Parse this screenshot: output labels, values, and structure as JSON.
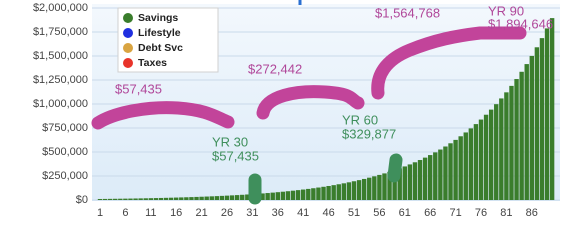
{
  "chart_data": {
    "type": "bar",
    "categories": [
      1,
      null,
      null,
      null,
      null,
      6,
      null,
      null,
      null,
      null,
      11,
      null,
      null,
      null,
      null,
      16,
      null,
      null,
      null,
      null,
      21,
      null,
      null,
      null,
      null,
      26,
      null,
      null,
      null,
      null,
      31,
      null,
      null,
      null,
      null,
      36,
      null,
      null,
      null,
      null,
      41,
      null,
      null,
      null,
      null,
      46,
      null,
      null,
      null,
      null,
      51,
      null,
      null,
      null,
      null,
      56,
      null,
      null,
      null,
      null,
      61,
      null,
      null,
      null,
      null,
      66,
      null,
      null,
      null,
      null,
      71,
      null,
      null,
      null,
      null,
      76,
      null,
      null,
      null,
      null,
      81,
      null,
      null,
      null,
      null,
      86,
      null,
      null,
      null,
      null
    ],
    "series": [
      {
        "name": "Savings",
        "color": "#3a7d2c",
        "values": [
          10600,
          11236,
          11910,
          12625,
          13382,
          14185,
          15036,
          15938,
          16895,
          17908,
          18983,
          20122,
          21329,
          22609,
          23966,
          25404,
          26928,
          28543,
          30256,
          32071,
          33996,
          36035,
          38197,
          40489,
          42919,
          45494,
          48223,
          51117,
          54184,
          57435,
          60881,
          64534,
          68406,
          72510,
          76861,
          81473,
          86361,
          91543,
          97036,
          102857,
          109028,
          115571,
          122504,
          129855,
          137646,
          145905,
          154659,
          163939,
          173775,
          184202,
          195254,
          206969,
          219387,
          232550,
          246503,
          261293,
          276971,
          293589,
          311204,
          329877,
          349670,
          370650,
          392883,
          416470,
          441441,
          467931,
          496003,
          525758,
          557327,
          590744,
          626196,
          663779,
          703605,
          745819,
          790583,
          838019,
          888293,
          941568,
          998076,
          1057958,
          1121450,
          1188712,
          1260036,
          1335639,
          1415789,
          1500743,
          1590766,
          1686231,
          1787405,
          1894646
        ]
      },
      {
        "name": "Lifestyle",
        "color": "#1f2fe0",
        "values": [
          null,
          null,
          null,
          null,
          null,
          null,
          null,
          null,
          null,
          null,
          null,
          null,
          null,
          null,
          null,
          null,
          null,
          null,
          null,
          null,
          null,
          null,
          null,
          null,
          null,
          null,
          null,
          null,
          null,
          null,
          null,
          null,
          null,
          null,
          null,
          null,
          null,
          null,
          null,
          null,
          null,
          null,
          null,
          null,
          null,
          null,
          null,
          null,
          null,
          null,
          null,
          null,
          null,
          null,
          null,
          null,
          null,
          null,
          null,
          null,
          null,
          null,
          null,
          null,
          null,
          null,
          null,
          null,
          null,
          null,
          null,
          null,
          null,
          null,
          null,
          null,
          null,
          null,
          null,
          null,
          null,
          null,
          null,
          null,
          null,
          null,
          null,
          null,
          null,
          null
        ]
      },
      {
        "name": "Debt Svc",
        "color": "#d9a441",
        "values": [
          null,
          null,
          null,
          null,
          null,
          null,
          null,
          null,
          null,
          null,
          null,
          null,
          null,
          null,
          null,
          null,
          null,
          null,
          null,
          null,
          null,
          null,
          null,
          null,
          null,
          null,
          null,
          null,
          null,
          null,
          null,
          null,
          null,
          null,
          null,
          null,
          null,
          null,
          null,
          null,
          null,
          null,
          null,
          null,
          null,
          null,
          null,
          null,
          null,
          null,
          null,
          null,
          null,
          null,
          null,
          null,
          null,
          null,
          null,
          null,
          null,
          null,
          null,
          null,
          null,
          null,
          null,
          null,
          null,
          null,
          null,
          null,
          null,
          null,
          null,
          null,
          null,
          null,
          null,
          null,
          null,
          null,
          null,
          null,
          null,
          null,
          null,
          null,
          null,
          null
        ]
      },
      {
        "name": "Taxes",
        "color": "#e8332a",
        "values": [
          null,
          null,
          null,
          null,
          null,
          null,
          null,
          null,
          null,
          null,
          null,
          null,
          null,
          null,
          null,
          null,
          null,
          null,
          null,
          null,
          null,
          null,
          null,
          null,
          null,
          null,
          null,
          null,
          null,
          null,
          null,
          null,
          null,
          null,
          null,
          null,
          null,
          null,
          null,
          null,
          null,
          null,
          null,
          null,
          null,
          null,
          null,
          null,
          null,
          null,
          null,
          null,
          null,
          null,
          null,
          null,
          null,
          null,
          null,
          null,
          null,
          null,
          null,
          null,
          null,
          null,
          null,
          null,
          null,
          null,
          null,
          null,
          null,
          null,
          null,
          null,
          null,
          null,
          null,
          null,
          null,
          null,
          null,
          null,
          null,
          null,
          null,
          null,
          null,
          null
        ]
      }
    ],
    "ylim": [
      0,
      2000000
    ],
    "yticks": [
      {
        "value": 0,
        "label": "$0"
      },
      {
        "value": 250000,
        "label": "$250,000"
      },
      {
        "value": 500000,
        "label": "$500,000"
      },
      {
        "value": 750000,
        "label": "$750,000"
      },
      {
        "value": 1000000,
        "label": "$1,000,000"
      },
      {
        "value": 1250000,
        "label": "$1,250,000"
      },
      {
        "value": 1500000,
        "label": "$1,500,000"
      },
      {
        "value": 1750000,
        "label": "$1,750,000"
      },
      {
        "value": 2000000,
        "label": "$2,000,000"
      }
    ],
    "grid": true,
    "legend": "upper left",
    "annotations": [
      "$57,435",
      "$272,442",
      "$1,564,768",
      "YR 90",
      "$1,894,646",
      "YR 30",
      "$57,435",
      "YR 60",
      "$329,877"
    ]
  }
}
